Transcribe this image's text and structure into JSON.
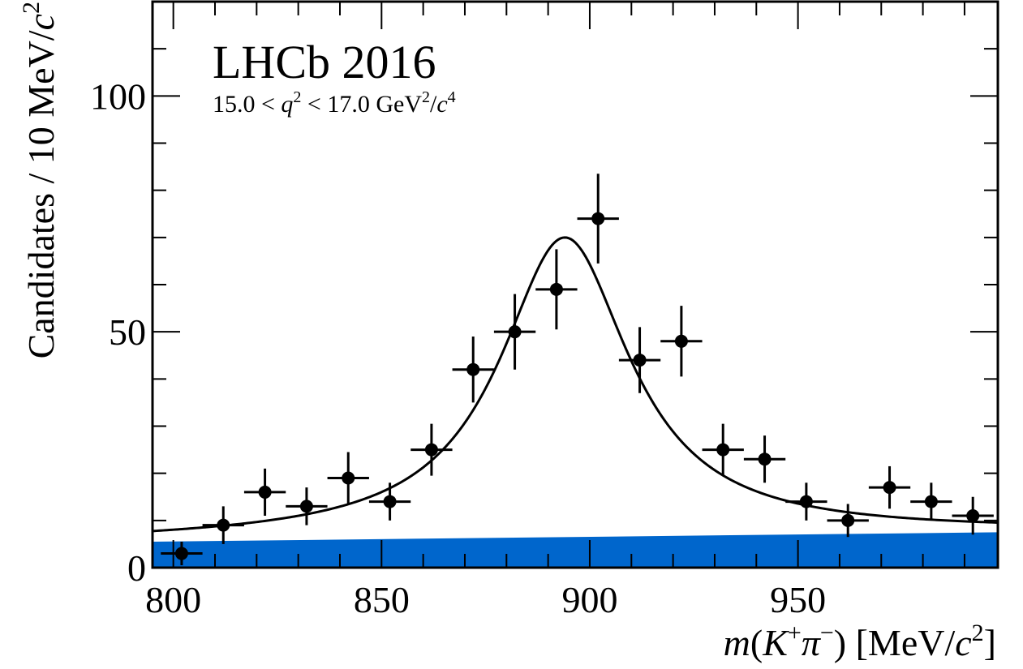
{
  "chart_data": {
    "type": "scatter",
    "experiment_label": "LHCb 2016",
    "selection_label": {
      "prefix": "15.0 < ",
      "var": "q",
      "middle": " < 17.0 GeV",
      "unit_sep": "/",
      "unit_var": "c"
    },
    "xlabel": {
      "func": "m",
      "open": "(",
      "k": "K",
      "pi": "π",
      "close": ")",
      "unit_open": " [MeV/",
      "unit_var": "c",
      "unit_close": "]"
    },
    "ylabel": {
      "text": "Candidates / 10 MeV/",
      "var": "c"
    },
    "xlim": [
      795,
      998
    ],
    "ylim": [
      0,
      120
    ],
    "x_ticks": [
      800,
      850,
      900,
      950
    ],
    "y_ticks": [
      0,
      50,
      100
    ],
    "bin_width": 10,
    "series": [
      {
        "type": "errorbar",
        "x": [
          802,
          812,
          822,
          832,
          842,
          852,
          862,
          872,
          882,
          892,
          902,
          912,
          922,
          932,
          942,
          952,
          962,
          972,
          982,
          992
        ],
        "y": [
          3,
          9,
          16,
          13,
          19,
          14,
          25,
          42,
          50,
          59,
          74,
          44,
          48,
          25,
          23,
          14,
          10,
          17,
          14,
          11
        ],
        "yerr": [
          2.5,
          4,
          5,
          4,
          5.5,
          4,
          5.5,
          7,
          8,
          8.5,
          9.5,
          7,
          7.5,
          5.5,
          5,
          4,
          3.5,
          4.5,
          4,
          4
        ]
      },
      {
        "type": "curve",
        "peak_x": 894,
        "peak_y": 70,
        "half_width": 19,
        "baseline_at_low": 5.5,
        "baseline_at_high": 7.5
      },
      {
        "type": "band",
        "y_at_low": 5.5,
        "y_at_high": 7.5,
        "color": "#0066cc"
      }
    ],
    "grid": false
  }
}
